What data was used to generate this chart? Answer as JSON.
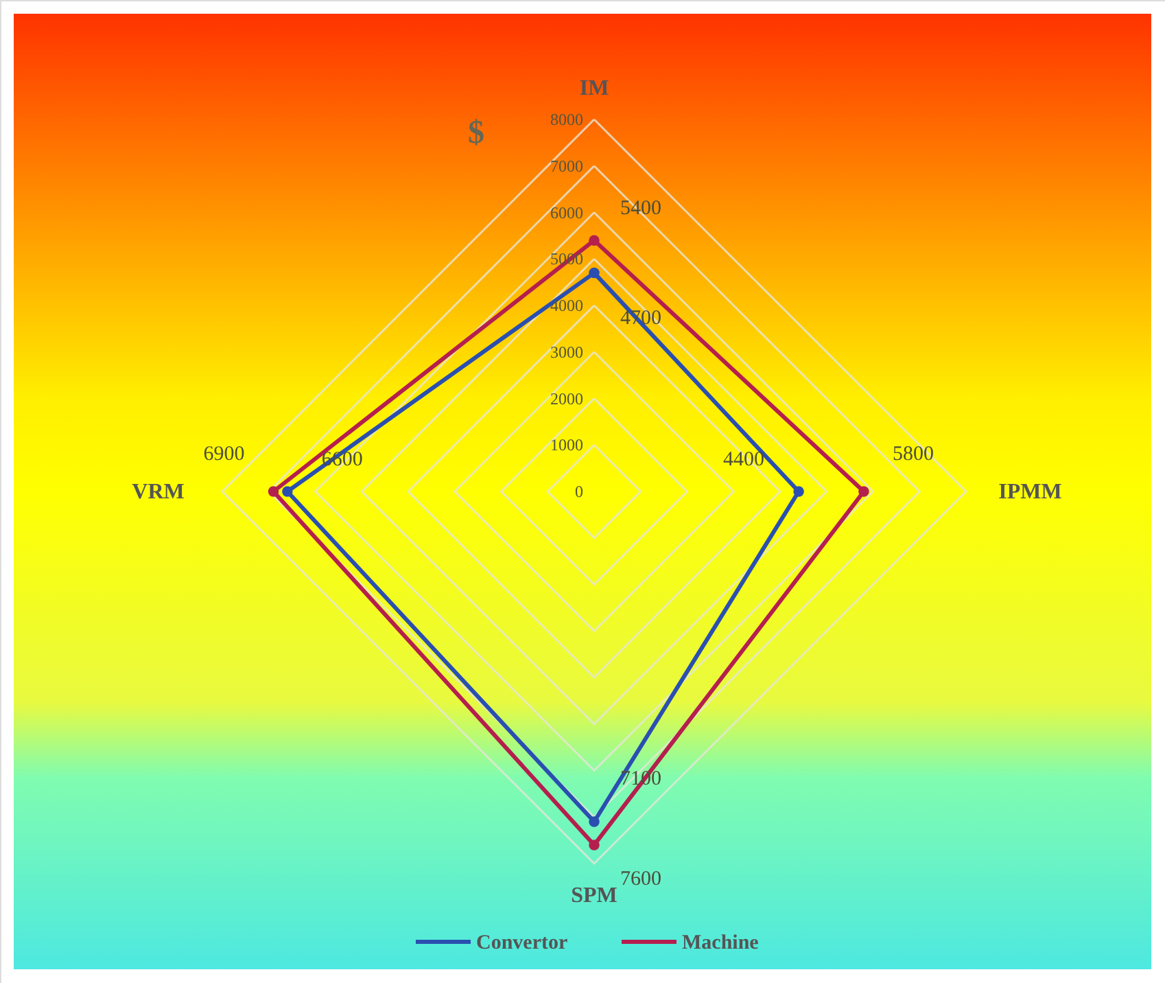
{
  "chart_data": {
    "type": "radar",
    "ylabel": "$",
    "categories": [
      "IM",
      "IPMM",
      "SPM",
      "VRM"
    ],
    "series": [
      {
        "name": "Convertor",
        "color": "#2a4fb0",
        "values": [
          4700,
          4400,
          7100,
          6600
        ]
      },
      {
        "name": "Machine",
        "color": "#b51f4e",
        "values": [
          5400,
          5800,
          7600,
          6900
        ]
      }
    ],
    "ylim": [
      0,
      8000
    ],
    "yticks": [
      0,
      1000,
      2000,
      3000,
      4000,
      5000,
      6000,
      7000,
      8000
    ],
    "grid": true,
    "legend": "bottom",
    "marker": "circle",
    "line_style": "solid",
    "data_labels": true
  }
}
